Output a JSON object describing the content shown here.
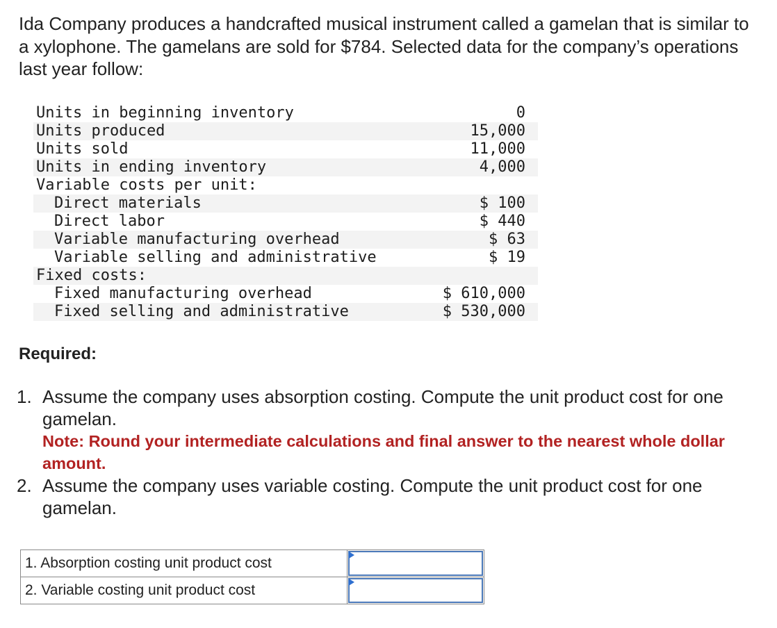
{
  "intro": {
    "text": "Ida Company produces a handcrafted musical instrument called a gamelan that is similar to a xylophone. The gamelans are sold for $784. Selected data for the company’s operations last year follow:"
  },
  "data_rows": [
    {
      "label": "Units in beginning inventory",
      "value": "0",
      "indent": false
    },
    {
      "label": "Units produced",
      "value": "15,000",
      "indent": false
    },
    {
      "label": "Units sold",
      "value": "11,000",
      "indent": false
    },
    {
      "label": "Units in ending inventory",
      "value": "4,000",
      "indent": false
    },
    {
      "label": "Variable costs per unit:",
      "value": "",
      "indent": false
    },
    {
      "label": "Direct materials",
      "value": "$ 100",
      "indent": true
    },
    {
      "label": "Direct labor",
      "value": "$ 440",
      "indent": true
    },
    {
      "label": "Variable manufacturing overhead",
      "value": "$ 63",
      "indent": true
    },
    {
      "label": "Variable selling and administrative",
      "value": "$ 19",
      "indent": true
    },
    {
      "label": "Fixed costs:",
      "value": "",
      "indent": false
    },
    {
      "label": "Fixed manufacturing overhead",
      "value": "$ 610,000",
      "indent": true
    },
    {
      "label": "Fixed selling and administrative",
      "value": "$ 530,000",
      "indent": true
    }
  ],
  "required": {
    "heading": "Required:",
    "items": [
      {
        "number": "1.",
        "text": "Assume the company uses absorption costing. Compute the unit product cost for one gamelan.",
        "note": "Note: Round your intermediate calculations and final answer to the nearest whole dollar amount."
      },
      {
        "number": "2.",
        "text": "Assume the company uses variable costing. Compute the unit product cost for one gamelan."
      }
    ]
  },
  "answers": {
    "rows": [
      {
        "label": "1. Absorption costing unit product cost",
        "value": ""
      },
      {
        "label": "2. Variable costing unit product cost",
        "value": ""
      }
    ]
  },
  "colors": {
    "note_red": "#b22222",
    "input_border": "#4a78b8",
    "marker_blue": "#2e6fd0"
  }
}
